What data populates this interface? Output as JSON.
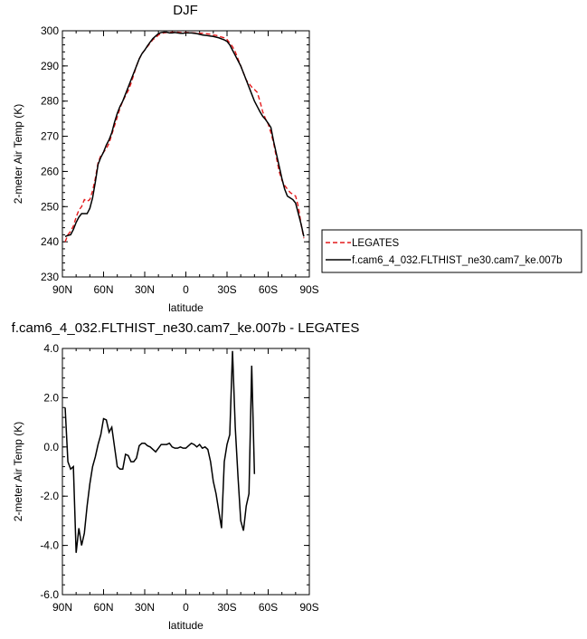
{
  "chart_data": [
    {
      "type": "line",
      "title": "DJF",
      "xlabel": "latitude",
      "ylabel": "2-meter Air Temp (K)",
      "xlim": [
        90,
        -90
      ],
      "ylim": [
        230,
        300
      ],
      "x_ticks": [
        {
          "value": 90,
          "label": "90N"
        },
        {
          "value": 60,
          "label": "60N"
        },
        {
          "value": 30,
          "label": "30N"
        },
        {
          "value": 0,
          "label": "0"
        },
        {
          "value": -30,
          "label": "30S"
        },
        {
          "value": -60,
          "label": "60S"
        },
        {
          "value": -90,
          "label": "90S"
        }
      ],
      "y_ticks": [
        230,
        240,
        250,
        260,
        270,
        280,
        290,
        300
      ],
      "legend_position": "right",
      "series": [
        {
          "name": "LEGATES",
          "color": "#e41a1c",
          "dash": "dashed",
          "points": [
            [
              88,
              240
            ],
            [
              86,
              242
            ],
            [
              84,
              243
            ],
            [
              82,
              244.5
            ],
            [
              80,
              247
            ],
            [
              78,
              249
            ],
            [
              76,
              250
            ],
            [
              74,
              252
            ],
            [
              72,
              251.5
            ],
            [
              70,
              252
            ],
            [
              68,
              254.5
            ],
            [
              66,
              258
            ],
            [
              64,
              262.5
            ],
            [
              62,
              264.5
            ],
            [
              60,
              265.5
            ],
            [
              58,
              266.5
            ],
            [
              56,
              268
            ],
            [
              54,
              270.5
            ],
            [
              52,
              273
            ],
            [
              50,
              275.5
            ],
            [
              48,
              278
            ],
            [
              46,
              280
            ],
            [
              44,
              281.5
            ],
            [
              42,
              283
            ],
            [
              40,
              285
            ],
            [
              38,
              287.5
            ],
            [
              36,
              290
            ],
            [
              34,
              292
            ],
            [
              32,
              293.5
            ],
            [
              30,
              294.5
            ],
            [
              28,
              295.5
            ],
            [
              26,
              296.5
            ],
            [
              24,
              297.5
            ],
            [
              22,
              298
            ],
            [
              20,
              298.8
            ],
            [
              18,
              299.2
            ],
            [
              16,
              299.4
            ],
            [
              14,
              299.5
            ],
            [
              12,
              299.5
            ],
            [
              10,
              299.6
            ],
            [
              8,
              299.6
            ],
            [
              6,
              299.6
            ],
            [
              4,
              299.5
            ],
            [
              2,
              299.5
            ],
            [
              0,
              299.5
            ],
            [
              -2,
              299.5
            ],
            [
              -4,
              299.4
            ],
            [
              -6,
              299.4
            ],
            [
              -8,
              299.3
            ],
            [
              -10,
              299.3
            ],
            [
              -12,
              299.3
            ],
            [
              -14,
              299.2
            ],
            [
              -16,
              299.1
            ],
            [
              -18,
              299
            ],
            [
              -20,
              298.8
            ],
            [
              -22,
              298.7
            ],
            [
              -24,
              298.5
            ],
            [
              -26,
              298.2
            ],
            [
              -28,
              298
            ],
            [
              -30,
              297.5
            ],
            [
              -32,
              296.5
            ],
            [
              -34,
              295.5
            ],
            [
              -36,
              294
            ],
            [
              -38,
              292
            ],
            [
              -40,
              290
            ],
            [
              -42,
              288
            ],
            [
              -44,
              286
            ],
            [
              -46,
              285
            ],
            [
              -48,
              284
            ],
            [
              -50,
              283.3
            ],
            [
              -52,
              282.5
            ],
            [
              -54,
              280
            ],
            [
              -56,
              277
            ],
            [
              -58,
              275
            ],
            [
              -60,
              273.5
            ],
            [
              -62,
              271
            ],
            [
              -64,
              268
            ],
            [
              -66,
              264
            ],
            [
              -68,
              260
            ],
            [
              -70,
              257.5
            ],
            [
              -72,
              256
            ],
            [
              -74,
              255
            ],
            [
              -76,
              254
            ],
            [
              -78,
              253.5
            ],
            [
              -80,
              253
            ],
            [
              -82,
              250
            ],
            [
              -84,
              245
            ],
            [
              -86,
              241
            ]
          ]
        },
        {
          "name": "f.cam6_4_032.FLTHIST_ne30.cam7_ke.007b",
          "color": "#000000",
          "dash": "solid",
          "points": [
            [
              88,
              241.5
            ],
            [
              86,
              241.8
            ],
            [
              84,
              242
            ],
            [
              82,
              243.5
            ],
            [
              80,
              245.5
            ],
            [
              78,
              247
            ],
            [
              76,
              248
            ],
            [
              74,
              248
            ],
            [
              72,
              248
            ],
            [
              70,
              249.5
            ],
            [
              68,
              252.5
            ],
            [
              66,
              257
            ],
            [
              64,
              262
            ],
            [
              62,
              264
            ],
            [
              60,
              265.5
            ],
            [
              58,
              267.5
            ],
            [
              56,
              269
            ],
            [
              54,
              271
            ],
            [
              52,
              274
            ],
            [
              50,
              276.5
            ],
            [
              48,
              278.5
            ],
            [
              46,
              280
            ],
            [
              44,
              282
            ],
            [
              42,
              284
            ],
            [
              40,
              286
            ],
            [
              38,
              288
            ],
            [
              36,
              290
            ],
            [
              34,
              292
            ],
            [
              32,
              293.5
            ],
            [
              30,
              294.5
            ],
            [
              28,
              295.7
            ],
            [
              26,
              296.8
            ],
            [
              24,
              297.8
            ],
            [
              22,
              298.5
            ],
            [
              20,
              299.2
            ],
            [
              18,
              299.5
            ],
            [
              16,
              299.6
            ],
            [
              14,
              299.6
            ],
            [
              12,
              299.4
            ],
            [
              10,
              299.4
            ],
            [
              8,
              299.5
            ],
            [
              6,
              299.4
            ],
            [
              4,
              299.3
            ],
            [
              2,
              299.3
            ],
            [
              0,
              299.4
            ],
            [
              -2,
              299.4
            ],
            [
              -4,
              299.4
            ],
            [
              -6,
              299.3
            ],
            [
              -8,
              299.2
            ],
            [
              -10,
              299
            ],
            [
              -12,
              298.8
            ],
            [
              -14,
              298.7
            ],
            [
              -16,
              298.6
            ],
            [
              -18,
              298.5
            ],
            [
              -20,
              298.4
            ],
            [
              -22,
              298.2
            ],
            [
              -24,
              298
            ],
            [
              -26,
              297.7
            ],
            [
              -28,
              297.4
            ],
            [
              -30,
              297
            ],
            [
              -32,
              296
            ],
            [
              -34,
              294.5
            ],
            [
              -36,
              293
            ],
            [
              -38,
              291.5
            ],
            [
              -40,
              290
            ],
            [
              -42,
              288
            ],
            [
              -44,
              286
            ],
            [
              -46,
              284
            ],
            [
              -48,
              282
            ],
            [
              -50,
              280
            ],
            [
              -52,
              278.5
            ],
            [
              -54,
              277
            ],
            [
              -56,
              275.7
            ],
            [
              -58,
              274.8
            ],
            [
              -60,
              273.7
            ],
            [
              -62,
              272.5
            ],
            [
              -64,
              268.5
            ],
            [
              -66,
              265
            ],
            [
              -68,
              261.5
            ],
            [
              -70,
              258
            ],
            [
              -72,
              255
            ],
            [
              -74,
              253
            ],
            [
              -76,
              252.5
            ],
            [
              -78,
              252
            ],
            [
              -80,
              251
            ],
            [
              -82,
              248
            ],
            [
              -84,
              245
            ],
            [
              -86,
              241.5
            ]
          ]
        }
      ]
    },
    {
      "type": "line",
      "title": "f.cam6_4_032.FLTHIST_ne30.cam7_ke.007b - LEGATES",
      "xlabel": "latitude",
      "ylabel": "2-meter Air Temp (K)",
      "xlim": [
        90,
        -90
      ],
      "ylim": [
        -6,
        4
      ],
      "x_ticks": [
        {
          "value": 90,
          "label": "90N"
        },
        {
          "value": 60,
          "label": "60N"
        },
        {
          "value": 30,
          "label": "30N"
        },
        {
          "value": 0,
          "label": "0"
        },
        {
          "value": -30,
          "label": "30S"
        },
        {
          "value": -60,
          "label": "60S"
        },
        {
          "value": -90,
          "label": "90S"
        }
      ],
      "y_ticks": [
        {
          "value": 4,
          "label": "4.0"
        },
        {
          "value": 2,
          "label": "2.0"
        },
        {
          "value": 0,
          "label": "0.0"
        },
        {
          "value": -2,
          "label": "-2.0"
        },
        {
          "value": -4,
          "label": "-4.0"
        },
        {
          "value": -6,
          "label": "-6.0"
        }
      ],
      "series": [
        {
          "name": "",
          "color": "#000000",
          "dash": "solid",
          "points": [
            [
              88,
              1.6
            ],
            [
              86,
              -0.6
            ],
            [
              84,
              -0.9
            ],
            [
              82,
              -0.8
            ],
            [
              80,
              -4.3
            ],
            [
              78,
              -3.3
            ],
            [
              76,
              -4.0
            ],
            [
              74,
              -3.5
            ],
            [
              72,
              -2.4
            ],
            [
              70,
              -1.5
            ],
            [
              68,
              -0.8
            ],
            [
              66,
              -0.4
            ],
            [
              64,
              0.1
            ],
            [
              62,
              0.5
            ],
            [
              60,
              1.15
            ],
            [
              58,
              1.1
            ],
            [
              56,
              0.6
            ],
            [
              54,
              0.8
            ],
            [
              52,
              0.0
            ],
            [
              50,
              -0.8
            ],
            [
              48,
              -0.9
            ],
            [
              46,
              -0.9
            ],
            [
              44,
              -0.3
            ],
            [
              42,
              -0.35
            ],
            [
              40,
              -0.6
            ],
            [
              38,
              -0.6
            ],
            [
              36,
              -0.45
            ],
            [
              34,
              0.05
            ],
            [
              32,
              0.15
            ],
            [
              30,
              0.15
            ],
            [
              28,
              0.05
            ],
            [
              26,
              0.0
            ],
            [
              24,
              -0.1
            ],
            [
              22,
              -0.2
            ],
            [
              20,
              -0.05
            ],
            [
              18,
              0.1
            ],
            [
              16,
              0.1
            ],
            [
              14,
              0.1
            ],
            [
              12,
              0.15
            ],
            [
              10,
              0.0
            ],
            [
              8,
              -0.05
            ],
            [
              6,
              -0.05
            ],
            [
              4,
              0.0
            ],
            [
              2,
              -0.05
            ],
            [
              0,
              -0.05
            ],
            [
              -2,
              0.05
            ],
            [
              -4,
              0.15
            ],
            [
              -6,
              0.1
            ],
            [
              -8,
              0.0
            ],
            [
              -10,
              0.1
            ],
            [
              -12,
              -0.05
            ],
            [
              -14,
              0.0
            ],
            [
              -16,
              -0.1
            ],
            [
              -18,
              -0.6
            ],
            [
              -20,
              -1.4
            ],
            [
              -22,
              -1.9
            ],
            [
              -24,
              -2.6
            ],
            [
              -26,
              -3.3
            ],
            [
              -28,
              -0.6
            ],
            [
              -30,
              0.1
            ],
            [
              -32,
              0.5
            ],
            [
              -34,
              3.9
            ],
            [
              -36,
              0.8
            ],
            [
              -38,
              -1.2
            ],
            [
              -40,
              -3.0
            ],
            [
              -42,
              -3.4
            ],
            [
              -44,
              -2.4
            ],
            [
              -46,
              -1.9
            ],
            [
              -48,
              3.3
            ],
            [
              -50,
              -1.1
            ]
          ]
        }
      ]
    }
  ]
}
